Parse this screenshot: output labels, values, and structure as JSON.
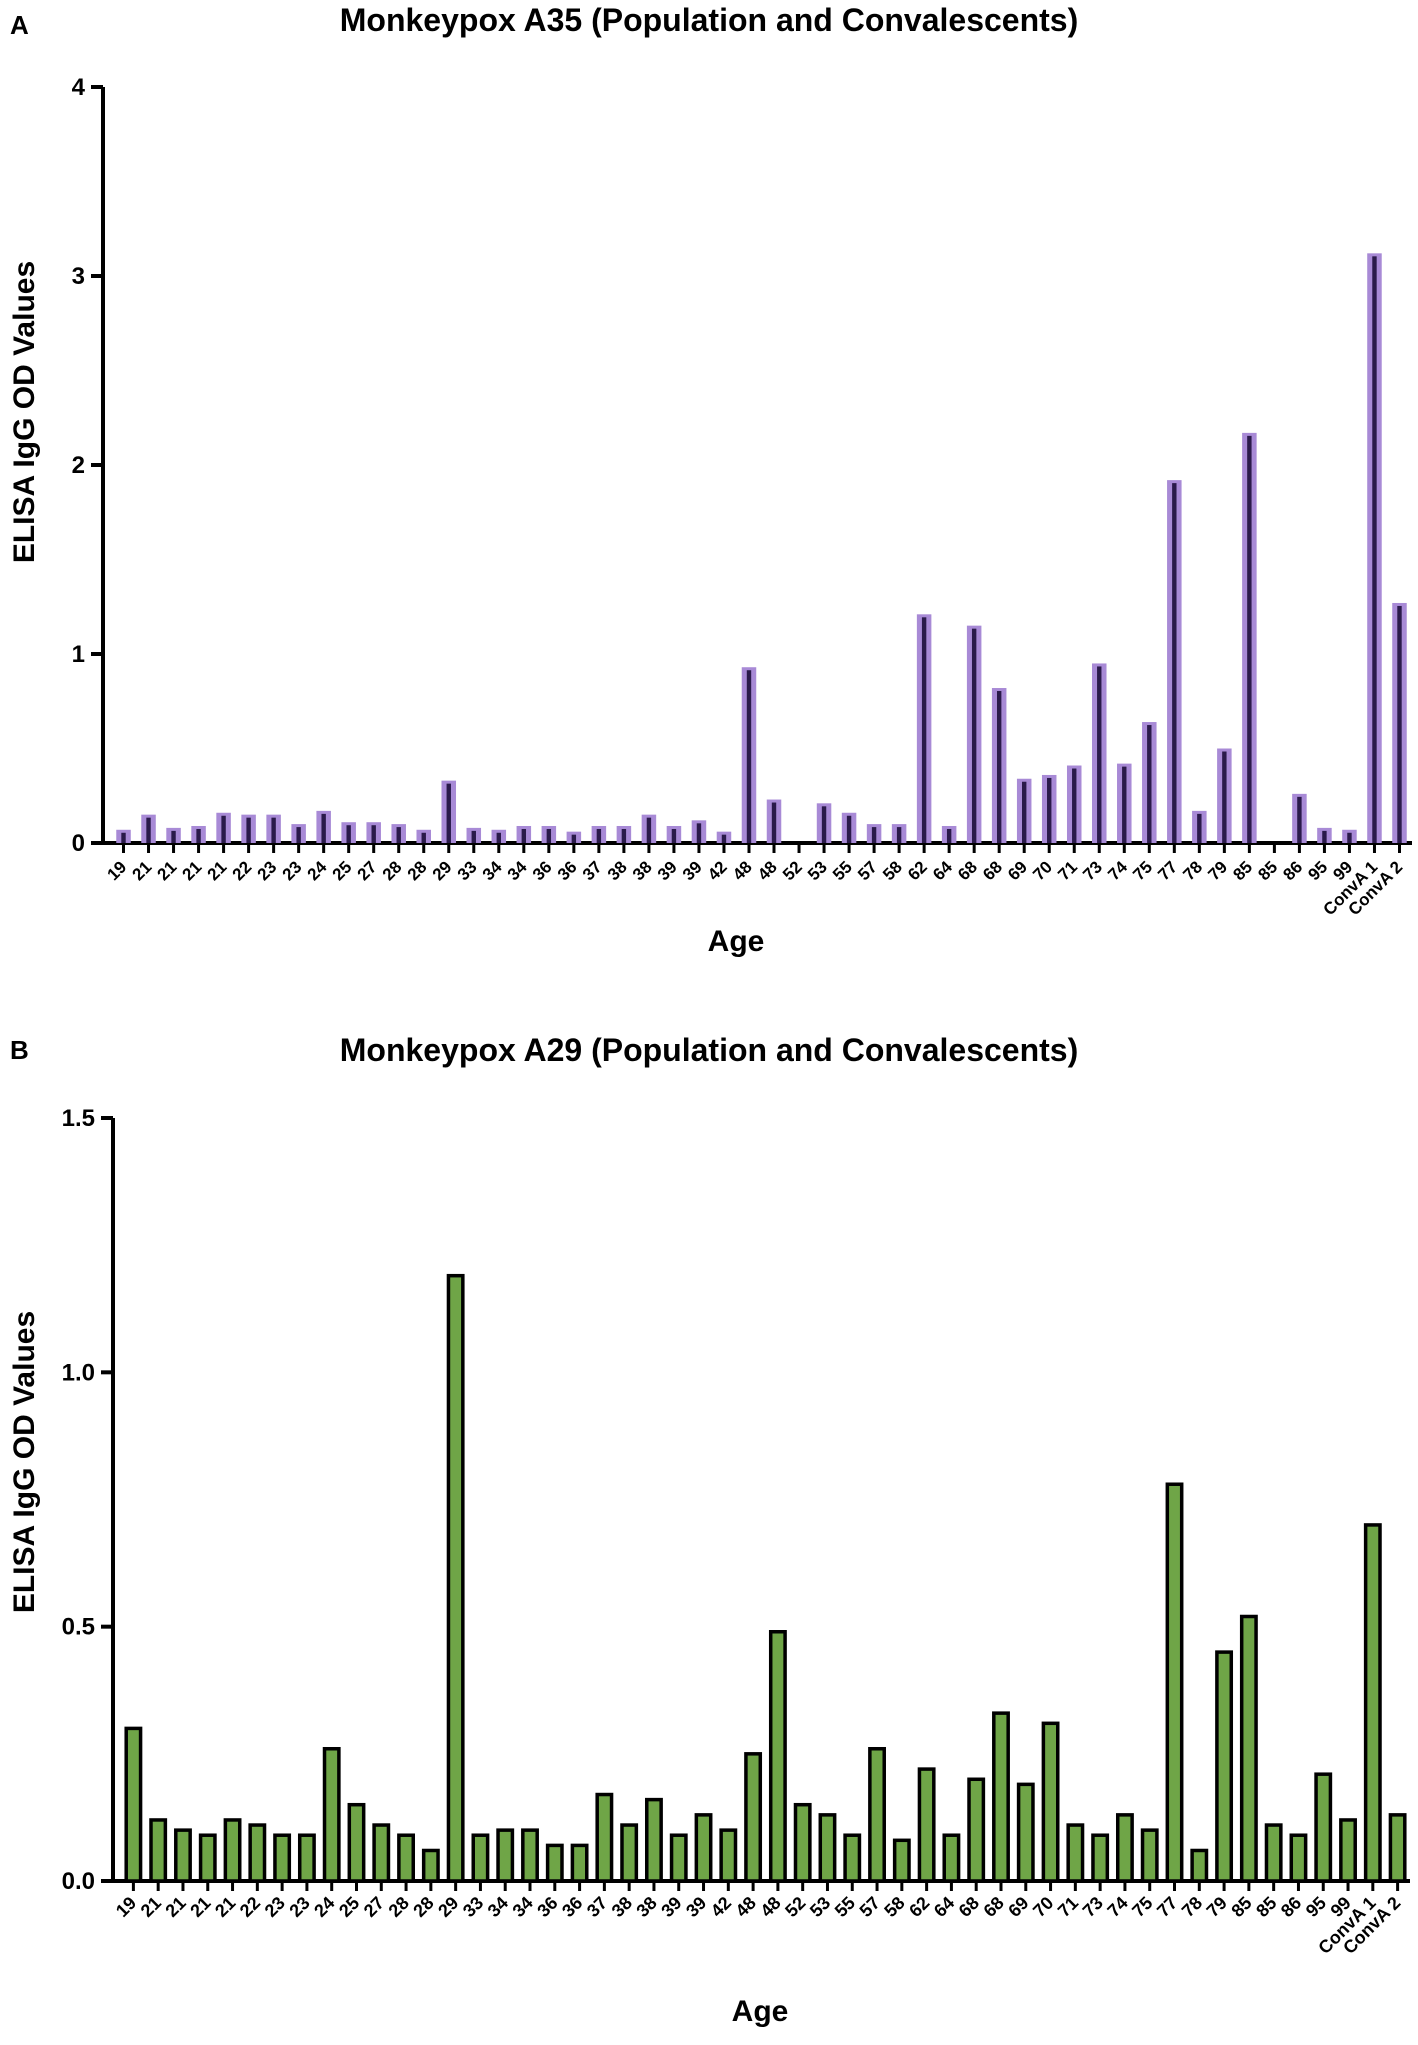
{
  "chart_data": [
    {
      "panel": "A",
      "type": "bar",
      "title": "Monkeypox A35 (Population and Convalescents)",
      "xlabel": "Age",
      "ylabel": "ELISA IgG OD Values",
      "ylim": [
        0,
        4
      ],
      "yticks": [
        "0",
        "1",
        "2",
        "3",
        "4"
      ],
      "bar_fill": "#a88ad6",
      "bar_stroke": "#2a1a4a",
      "categories": [
        "19",
        "21",
        "21",
        "21",
        "21",
        "22",
        "23",
        "23",
        "24",
        "25",
        "27",
        "28",
        "28",
        "29",
        "33",
        "34",
        "34",
        "36",
        "36",
        "37",
        "38",
        "38",
        "39",
        "39",
        "42",
        "48",
        "48",
        "52",
        "53",
        "55",
        "57",
        "58",
        "62",
        "64",
        "68",
        "68",
        "69",
        "70",
        "71",
        "73",
        "74",
        "75",
        "77",
        "78",
        "79",
        "85",
        "85",
        "86",
        "95",
        "99",
        "ConvA 1",
        "ConvA 2"
      ],
      "values": [
        0.07,
        0.15,
        0.08,
        0.09,
        0.16,
        0.15,
        0.15,
        0.1,
        0.17,
        0.11,
        0.11,
        0.1,
        0.07,
        0.33,
        0.08,
        0.07,
        0.09,
        0.09,
        0.06,
        0.09,
        0.09,
        0.15,
        0.09,
        0.12,
        0.06,
        0.93,
        0.23,
        0.0,
        0.21,
        0.16,
        0.1,
        0.1,
        1.21,
        0.09,
        1.15,
        0.82,
        0.34,
        0.36,
        0.41,
        0.95,
        0.42,
        0.64,
        1.92,
        0.17,
        0.5,
        2.17,
        0.0,
        0.26,
        0.08,
        0.07,
        3.12,
        1.27
      ]
    },
    {
      "panel": "B",
      "type": "bar",
      "title": "Monkeypox A29 (Population and Convalescents)",
      "xlabel": "Age",
      "ylabel": "ELISA IgG OD Values",
      "ylim": [
        0,
        1.5
      ],
      "yticks": [
        "0.0",
        "0.5",
        "1.0",
        "1.5"
      ],
      "bar_fill": "#6fa547",
      "bar_stroke": "#000000",
      "categories": [
        "19",
        "21",
        "21",
        "21",
        "21",
        "22",
        "23",
        "23",
        "24",
        "25",
        "27",
        "28",
        "28",
        "29",
        "33",
        "34",
        "34",
        "36",
        "36",
        "37",
        "38",
        "38",
        "39",
        "39",
        "42",
        "48",
        "48",
        "52",
        "53",
        "55",
        "57",
        "58",
        "62",
        "64",
        "68",
        "68",
        "69",
        "70",
        "71",
        "73",
        "74",
        "75",
        "77",
        "78",
        "79",
        "85",
        "85",
        "86",
        "95",
        "99",
        "ConvA 1",
        "ConvA 2"
      ],
      "values": [
        0.3,
        0.12,
        0.1,
        0.09,
        0.12,
        0.11,
        0.09,
        0.09,
        0.26,
        0.15,
        0.11,
        0.09,
        0.06,
        1.19,
        0.09,
        0.1,
        0.1,
        0.07,
        0.07,
        0.17,
        0.11,
        0.16,
        0.09,
        0.13,
        0.1,
        0.25,
        0.49,
        0.15,
        0.13,
        0.09,
        0.26,
        0.08,
        0.22,
        0.09,
        0.2,
        0.33,
        0.19,
        0.31,
        0.11,
        0.09,
        0.13,
        0.1,
        0.78,
        0.06,
        0.45,
        0.52,
        0.11,
        0.09,
        0.21,
        0.12,
        0.7,
        0.13
      ]
    }
  ]
}
